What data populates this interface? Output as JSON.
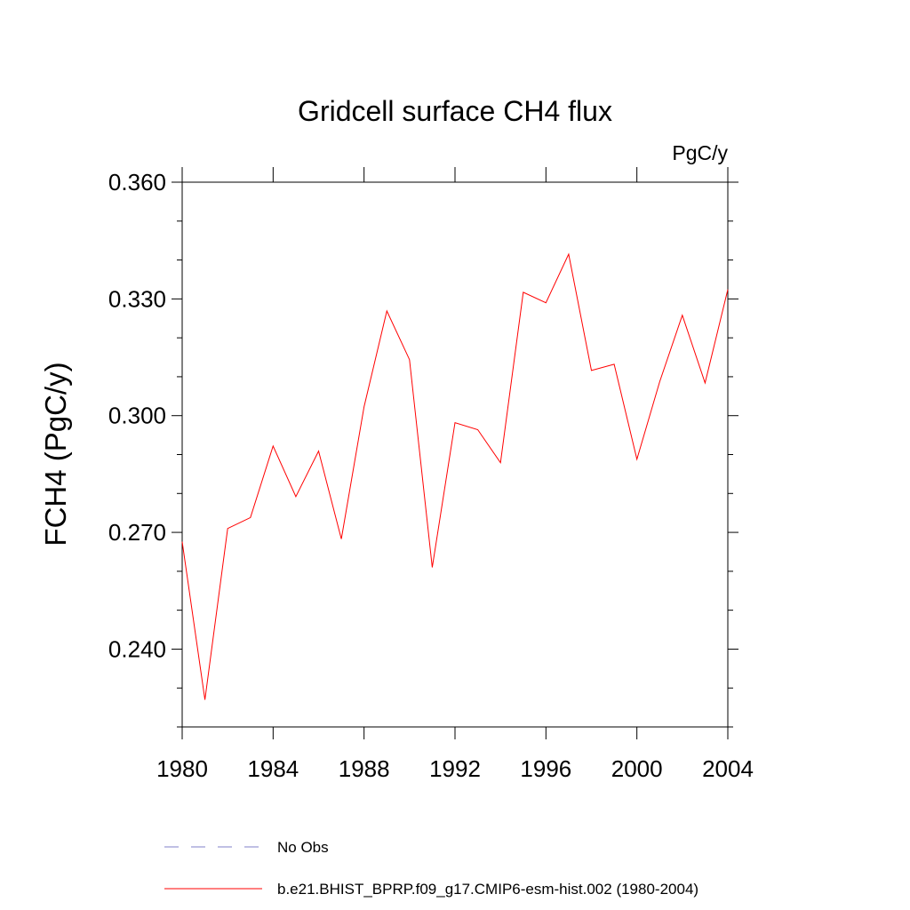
{
  "chart_data": {
    "type": "line",
    "title": "Gridcell surface CH4 flux",
    "units_label": "PgC/y",
    "ylabel": "FCH4  (PgC/y)",
    "x": [
      1980,
      1981,
      1982,
      1983,
      1984,
      1985,
      1986,
      1987,
      1988,
      1989,
      1990,
      1991,
      1992,
      1993,
      1994,
      1995,
      1996,
      1997,
      1998,
      1999,
      2000,
      2001,
      2002,
      2003,
      2004
    ],
    "series": [
      {
        "name": "b.e21.BHIST_BPRP.f09_g17.CMIP6-esm-hist.002 (1980-2004)",
        "color": "#ff0000",
        "values": [
          0.2676,
          0.227,
          0.271,
          0.2738,
          0.2922,
          0.2792,
          0.2909,
          0.2683,
          0.3023,
          0.3269,
          0.3144,
          0.261,
          0.2982,
          0.2964,
          0.2879,
          0.3317,
          0.329,
          0.3415,
          0.3116,
          0.3132,
          0.2888,
          0.3087,
          0.3258,
          0.3084,
          0.3324
        ]
      }
    ],
    "obs": {
      "name": "No Obs",
      "color": "#8080c8",
      "dashed": true
    },
    "xlim": [
      1980,
      2004
    ],
    "xticks": [
      1980,
      1984,
      1988,
      1992,
      1996,
      2000,
      2004
    ],
    "ylim": [
      0.22,
      0.36
    ],
    "yticks": [
      {
        "value": 0.24,
        "label": "0.240"
      },
      {
        "value": 0.27,
        "label": "0.270"
      },
      {
        "value": 0.3,
        "label": "0.300"
      },
      {
        "value": 0.33,
        "label": "0.330"
      },
      {
        "value": 0.36,
        "label": "0.360"
      }
    ],
    "yminorticks": [
      0.22,
      0.23,
      0.25,
      0.26,
      0.28,
      0.29,
      0.31,
      0.32,
      0.34,
      0.35
    ]
  }
}
